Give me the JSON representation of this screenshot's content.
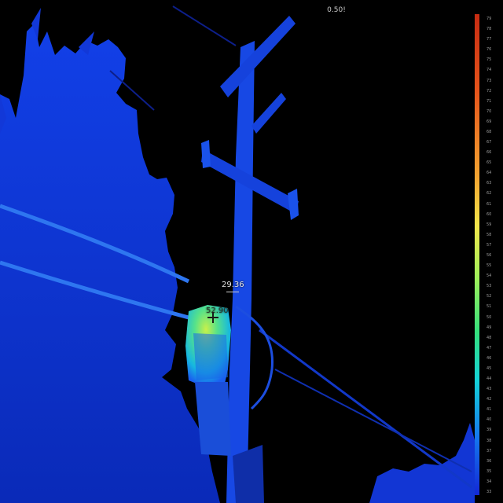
{
  "header": {
    "readout": "0.50!"
  },
  "spots": [
    {
      "label": "29.36",
      "data_name": "spot-label-pole"
    },
    {
      "label": "52.90",
      "data_name": "spot-label-transformer"
    }
  ],
  "scale": {
    "ticks": [
      "79",
      "78",
      "77",
      "76",
      "75",
      "74",
      "73",
      "72",
      "71",
      "70",
      "69",
      "68",
      "67",
      "66",
      "65",
      "64",
      "63",
      "62",
      "61",
      "60",
      "59",
      "58",
      "57",
      "56",
      "55",
      "54",
      "53",
      "52",
      "51",
      "50",
      "49",
      "48",
      "47",
      "46",
      "45",
      "44",
      "43",
      "42",
      "41",
      "40",
      "39",
      "38",
      "37",
      "36",
      "35",
      "34",
      "33"
    ]
  },
  "colors": {
    "cold": "#0a2bd6",
    "warm": "#9ef05a",
    "hot": "#c62b12",
    "background": "#000000"
  }
}
